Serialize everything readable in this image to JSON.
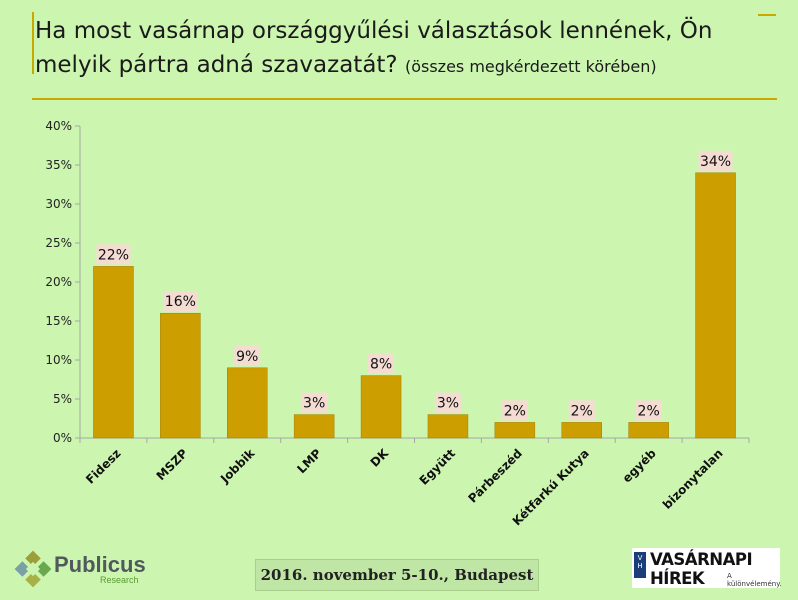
{
  "title": {
    "main_line1": "Ha most vasárnap országgyűlési választások lennének, Ön",
    "main_line2": "melyik pártra adná szavazatát?",
    "subtitle": "(összes megkérdezett körében)"
  },
  "footer": {
    "date_place": "2016. november 5-10., Budapest",
    "logo_left_name": "Publicus",
    "logo_left_sub": "Research",
    "logo_right_mark": "V H",
    "logo_right_name": "VASÁRNAPI HÍREK",
    "logo_right_tag": "A különvélemény."
  },
  "colors": {
    "background": "#ccf6b0",
    "bar": "#cc9e00",
    "bar_edge": "#a37d00",
    "label_box": "#f4dcd3",
    "accent_rule": "#c9a800"
  },
  "chart_data": {
    "type": "bar",
    "categories": [
      "Fidesz",
      "MSZP",
      "Jobbik",
      "LMP",
      "DK",
      "Együtt",
      "Párbeszéd",
      "Kétfarkú Kutya",
      "egyéb",
      "bizonytalan"
    ],
    "values": [
      22,
      16,
      9,
      3,
      8,
      3,
      2,
      2,
      2,
      34
    ],
    "data_labels": [
      "22%",
      "16%",
      "9%",
      "3%",
      "8%",
      "3%",
      "2%",
      "2%",
      "2%",
      "34%"
    ],
    "y_ticks": [
      "0%",
      "5%",
      "10%",
      "15%",
      "20%",
      "25%",
      "30%",
      "35%",
      "40%"
    ],
    "ylim": [
      0,
      40
    ],
    "y_unit": "%",
    "grid": false,
    "legend": "none"
  }
}
